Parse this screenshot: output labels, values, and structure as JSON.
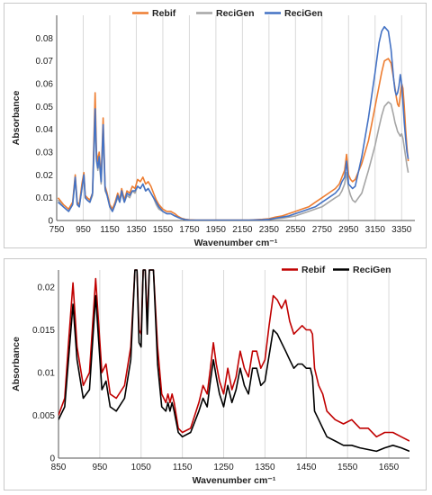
{
  "chart_data": [
    {
      "type": "line",
      "xlabel": "Wavenumber cm⁻¹",
      "ylabel": "Absorbance",
      "xlim": [
        750,
        3450
      ],
      "ylim": [
        0,
        0.09
      ],
      "x_ticks": [
        750,
        950,
        1150,
        1350,
        1550,
        1750,
        1950,
        2150,
        2350,
        2550,
        2750,
        2950,
        3150,
        3350
      ],
      "y_ticks": [
        0,
        0.01,
        0.02,
        0.03,
        0.04,
        0.05,
        0.06,
        0.07,
        0.08
      ],
      "y_tick_labels": [
        "0",
        "0.01",
        "0.02",
        "0.03",
        "0.04",
        "0.05",
        "0.06",
        "0.07",
        "0.08"
      ],
      "grid": "vertical",
      "legend": "top",
      "series": [
        {
          "name": "Rebif",
          "color": "#ed7d31",
          "x": [
            760,
            800,
            840,
            870,
            890,
            905,
            920,
            940,
            955,
            965,
            980,
            1000,
            1020,
            1040,
            1050,
            1060,
            1070,
            1085,
            1100,
            1115,
            1130,
            1150,
            1170,
            1190,
            1210,
            1225,
            1240,
            1260,
            1280,
            1300,
            1320,
            1340,
            1360,
            1380,
            1400,
            1420,
            1440,
            1460,
            1480,
            1500,
            1520,
            1550,
            1580,
            1610,
            1640,
            1660,
            1690,
            1720,
            1750,
            1800,
            1900,
            2000,
            2100,
            2200,
            2300,
            2350,
            2400,
            2450,
            2500,
            2550,
            2600,
            2650,
            2700,
            2750,
            2800,
            2850,
            2880,
            2900,
            2920,
            2935,
            2950,
            2965,
            2980,
            3000,
            3050,
            3100,
            3150,
            3180,
            3200,
            3220,
            3250,
            3270,
            3290,
            3300,
            3310,
            3320,
            3330,
            3340,
            3350,
            3360,
            3370,
            3380,
            3390,
            3400
          ],
          "y": [
            0.01,
            0.007,
            0.005,
            0.008,
            0.02,
            0.008,
            0.007,
            0.016,
            0.021,
            0.011,
            0.01,
            0.009,
            0.012,
            0.056,
            0.03,
            0.026,
            0.03,
            0.018,
            0.045,
            0.015,
            0.012,
            0.007,
            0.005,
            0.008,
            0.012,
            0.009,
            0.014,
            0.009,
            0.013,
            0.012,
            0.015,
            0.014,
            0.018,
            0.017,
            0.019,
            0.016,
            0.017,
            0.015,
            0.012,
            0.009,
            0.007,
            0.005,
            0.004,
            0.004,
            0.003,
            0.002,
            0.001,
            0.0005,
            0.0003,
            0.0002,
            0.0002,
            0.0002,
            0.0002,
            0.0002,
            0.0005,
            0.0008,
            0.0015,
            0.002,
            0.003,
            0.004,
            0.005,
            0.006,
            0.008,
            0.01,
            0.012,
            0.014,
            0.016,
            0.019,
            0.022,
            0.029,
            0.02,
            0.018,
            0.017,
            0.018,
            0.025,
            0.035,
            0.05,
            0.059,
            0.065,
            0.07,
            0.071,
            0.069,
            0.062,
            0.058,
            0.054,
            0.051,
            0.05,
            0.055,
            0.06,
            0.058,
            0.05,
            0.04,
            0.032,
            0.026
          ]
        },
        {
          "name": "ReciGen",
          "color": "#a5a5a5",
          "x": [
            760,
            800,
            840,
            870,
            890,
            905,
            920,
            940,
            955,
            965,
            980,
            1000,
            1020,
            1040,
            1050,
            1060,
            1070,
            1085,
            1100,
            1115,
            1130,
            1150,
            1170,
            1190,
            1210,
            1225,
            1240,
            1260,
            1280,
            1300,
            1320,
            1340,
            1360,
            1380,
            1400,
            1420,
            1440,
            1460,
            1480,
            1500,
            1520,
            1550,
            1580,
            1610,
            1640,
            1660,
            1690,
            1720,
            1750,
            1800,
            1900,
            2000,
            2100,
            2200,
            2300,
            2350,
            2400,
            2450,
            2500,
            2550,
            2600,
            2650,
            2700,
            2750,
            2800,
            2850,
            2880,
            2900,
            2920,
            2935,
            2950,
            2965,
            2980,
            3000,
            3050,
            3100,
            3150,
            3180,
            3200,
            3220,
            3250,
            3270,
            3290,
            3300,
            3310,
            3320,
            3330,
            3340,
            3350,
            3360,
            3370,
            3380,
            3390,
            3400
          ],
          "y": [
            0.009,
            0.006,
            0.004,
            0.007,
            0.018,
            0.007,
            0.006,
            0.014,
            0.019,
            0.01,
            0.009,
            0.008,
            0.011,
            0.045,
            0.026,
            0.022,
            0.026,
            0.016,
            0.038,
            0.013,
            0.011,
            0.006,
            0.004,
            0.007,
            0.01,
            0.008,
            0.012,
            0.008,
            0.011,
            0.01,
            0.013,
            0.012,
            0.015,
            0.014,
            0.016,
            0.013,
            0.014,
            0.012,
            0.01,
            0.007,
            0.005,
            0.004,
            0.003,
            0.003,
            0.002,
            0.0015,
            0.0008,
            0.0004,
            0.0002,
            0.0001,
            0.0001,
            0.0001,
            0.0001,
            0.0001,
            0.0002,
            0.0004,
            0.0008,
            0.001,
            0.0015,
            0.002,
            0.003,
            0.004,
            0.005,
            0.006,
            0.008,
            0.01,
            0.011,
            0.013,
            0.016,
            0.021,
            0.014,
            0.011,
            0.009,
            0.008,
            0.012,
            0.022,
            0.033,
            0.041,
            0.046,
            0.05,
            0.052,
            0.051,
            0.046,
            0.043,
            0.041,
            0.039,
            0.038,
            0.037,
            0.038,
            0.036,
            0.032,
            0.028,
            0.024,
            0.021
          ]
        },
        {
          "name": "ReciGen",
          "color": "#4472c4",
          "x": [
            760,
            800,
            840,
            870,
            890,
            905,
            920,
            940,
            955,
            965,
            980,
            1000,
            1020,
            1040,
            1050,
            1060,
            1070,
            1085,
            1100,
            1115,
            1130,
            1150,
            1170,
            1190,
            1210,
            1225,
            1240,
            1260,
            1280,
            1300,
            1320,
            1340,
            1360,
            1380,
            1400,
            1420,
            1440,
            1460,
            1480,
            1500,
            1520,
            1550,
            1580,
            1610,
            1640,
            1660,
            1690,
            1720,
            1750,
            1800,
            1900,
            2000,
            2100,
            2200,
            2300,
            2350,
            2400,
            2450,
            2500,
            2550,
            2600,
            2650,
            2700,
            2750,
            2800,
            2850,
            2880,
            2900,
            2920,
            2935,
            2950,
            2965,
            2980,
            3000,
            3050,
            3100,
            3150,
            3180,
            3200,
            3220,
            3250,
            3270,
            3290,
            3300,
            3310,
            3320,
            3330,
            3340,
            3350,
            3360,
            3370,
            3380,
            3390,
            3400
          ],
          "y": [
            0.008,
            0.006,
            0.004,
            0.007,
            0.019,
            0.007,
            0.006,
            0.014,
            0.02,
            0.01,
            0.009,
            0.008,
            0.012,
            0.049,
            0.027,
            0.023,
            0.028,
            0.017,
            0.042,
            0.014,
            0.011,
            0.006,
            0.004,
            0.007,
            0.011,
            0.008,
            0.013,
            0.008,
            0.012,
            0.011,
            0.013,
            0.013,
            0.015,
            0.014,
            0.016,
            0.013,
            0.014,
            0.012,
            0.01,
            0.008,
            0.006,
            0.004,
            0.003,
            0.003,
            0.002,
            0.0015,
            0.0008,
            0.0004,
            0.0002,
            0.0001,
            0.0001,
            0.0001,
            0.0001,
            0.0001,
            0.0003,
            0.0005,
            0.001,
            0.0015,
            0.002,
            0.003,
            0.004,
            0.005,
            0.006,
            0.008,
            0.01,
            0.012,
            0.014,
            0.017,
            0.019,
            0.026,
            0.016,
            0.015,
            0.014,
            0.015,
            0.028,
            0.045,
            0.065,
            0.078,
            0.083,
            0.085,
            0.083,
            0.075,
            0.062,
            0.057,
            0.055,
            0.056,
            0.059,
            0.064,
            0.06,
            0.052,
            0.043,
            0.036,
            0.03,
            0.027
          ]
        }
      ]
    },
    {
      "type": "line",
      "xlabel": "Wavenumber cm⁻¹",
      "ylabel": "Absorbance",
      "xlim": [
        850,
        1700
      ],
      "ylim": [
        0,
        0.022
      ],
      "x_ticks": [
        850,
        950,
        1050,
        1150,
        1250,
        1350,
        1450,
        1550,
        1650
      ],
      "y_ticks": [
        0,
        0.005,
        0.01,
        0.015,
        0.02
      ],
      "y_tick_labels": [
        "0",
        "0.005",
        "0.01",
        "0.015",
        "0.02"
      ],
      "grid": "vertical",
      "legend": "top-right",
      "series": [
        {
          "name": "Rebif",
          "color": "#c00000",
          "x": [
            850,
            865,
            875,
            885,
            895,
            910,
            925,
            940,
            955,
            965,
            975,
            990,
            1010,
            1025,
            1035,
            1040,
            1045,
            1050,
            1055,
            1060,
            1065,
            1070,
            1080,
            1090,
            1100,
            1110,
            1115,
            1120,
            1125,
            1130,
            1140,
            1150,
            1170,
            1190,
            1200,
            1210,
            1218,
            1225,
            1232,
            1240,
            1250,
            1260,
            1270,
            1280,
            1290,
            1300,
            1310,
            1320,
            1330,
            1340,
            1350,
            1360,
            1370,
            1380,
            1390,
            1400,
            1410,
            1420,
            1430,
            1440,
            1450,
            1460,
            1465,
            1470,
            1480,
            1490,
            1500,
            1520,
            1540,
            1560,
            1580,
            1600,
            1620,
            1640,
            1660,
            1680,
            1700
          ],
          "y": [
            0.005,
            0.007,
            0.014,
            0.0205,
            0.013,
            0.0085,
            0.01,
            0.021,
            0.01,
            0.011,
            0.0075,
            0.007,
            0.0085,
            0.013,
            0.022,
            0.022,
            0.015,
            0.0145,
            0.022,
            0.022,
            0.016,
            0.022,
            0.022,
            0.013,
            0.0075,
            0.0065,
            0.0075,
            0.0065,
            0.0075,
            0.0065,
            0.0035,
            0.003,
            0.0035,
            0.0065,
            0.0085,
            0.0075,
            0.0105,
            0.0135,
            0.011,
            0.009,
            0.0075,
            0.0105,
            0.008,
            0.0095,
            0.0125,
            0.0105,
            0.0095,
            0.0125,
            0.0125,
            0.0105,
            0.0115,
            0.0155,
            0.019,
            0.0185,
            0.0175,
            0.0185,
            0.016,
            0.0145,
            0.015,
            0.0155,
            0.015,
            0.015,
            0.0145,
            0.0105,
            0.0085,
            0.0075,
            0.0055,
            0.0045,
            0.004,
            0.0045,
            0.0035,
            0.0035,
            0.0025,
            0.003,
            0.003,
            0.0025,
            0.002
          ]
        },
        {
          "name": "ReciGen",
          "color": "#000000",
          "x": [
            850,
            865,
            875,
            885,
            895,
            910,
            925,
            940,
            955,
            965,
            975,
            990,
            1010,
            1025,
            1035,
            1040,
            1045,
            1050,
            1055,
            1060,
            1065,
            1070,
            1080,
            1090,
            1100,
            1110,
            1115,
            1120,
            1125,
            1130,
            1140,
            1150,
            1170,
            1190,
            1200,
            1210,
            1218,
            1225,
            1232,
            1240,
            1250,
            1260,
            1270,
            1280,
            1290,
            1300,
            1310,
            1320,
            1330,
            1340,
            1350,
            1360,
            1370,
            1380,
            1390,
            1400,
            1410,
            1420,
            1430,
            1440,
            1450,
            1460,
            1465,
            1470,
            1480,
            1490,
            1500,
            1520,
            1540,
            1560,
            1580,
            1600,
            1620,
            1640,
            1660,
            1680,
            1700
          ],
          "y": [
            0.0045,
            0.006,
            0.012,
            0.018,
            0.0115,
            0.007,
            0.008,
            0.019,
            0.008,
            0.009,
            0.006,
            0.0055,
            0.007,
            0.0115,
            0.022,
            0.022,
            0.0135,
            0.013,
            0.022,
            0.022,
            0.0145,
            0.022,
            0.022,
            0.011,
            0.006,
            0.0055,
            0.0065,
            0.0055,
            0.0065,
            0.0055,
            0.003,
            0.0025,
            0.003,
            0.0055,
            0.007,
            0.006,
            0.009,
            0.0115,
            0.0095,
            0.0075,
            0.006,
            0.0085,
            0.0065,
            0.008,
            0.0105,
            0.0085,
            0.0075,
            0.0105,
            0.0105,
            0.0085,
            0.009,
            0.012,
            0.015,
            0.0145,
            0.0135,
            0.0125,
            0.0115,
            0.0105,
            0.011,
            0.011,
            0.0105,
            0.0105,
            0.0095,
            0.0055,
            0.0045,
            0.0035,
            0.0025,
            0.002,
            0.0015,
            0.0015,
            0.0012,
            0.001,
            0.0008,
            0.0012,
            0.0015,
            0.0012,
            0.0008
          ]
        }
      ]
    }
  ]
}
